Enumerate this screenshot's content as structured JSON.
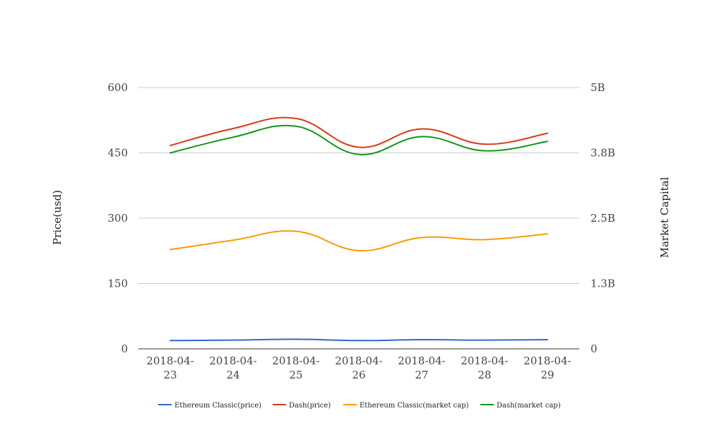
{
  "chart_data": {
    "type": "line",
    "categories": [
      "2018-04-23",
      "2018-04-24",
      "2018-04-25",
      "2018-04-26",
      "2018-04-27",
      "2018-04-28",
      "2018-04-29"
    ],
    "category_labels": [
      [
        "2018-04-",
        "23"
      ],
      [
        "2018-04-",
        "24"
      ],
      [
        "2018-04-",
        "25"
      ],
      [
        "2018-04-",
        "26"
      ],
      [
        "2018-04-",
        "27"
      ],
      [
        "2018-04-",
        "28"
      ],
      [
        "2018-04-",
        "29"
      ]
    ],
    "y_left": {
      "label": "Price(usd)",
      "range": [
        0,
        600
      ],
      "ticks": [
        "0",
        "150",
        "300",
        "450",
        "600"
      ]
    },
    "y_right": {
      "label": "Market Capital",
      "range": [
        0,
        5000000000
      ],
      "ticks": [
        "0",
        "1.3B",
        "2.5B",
        "3.8B",
        "5B"
      ]
    },
    "grid": true,
    "legend_position": "bottom",
    "series": [
      {
        "name": "Ethereum Classic(price)",
        "axis": "left",
        "color": "#3366cc",
        "values": [
          19,
          20,
          22,
          19,
          21,
          20,
          21
        ]
      },
      {
        "name": "Dash(price)",
        "axis": "left",
        "color": "#dc3912",
        "values": [
          467,
          506,
          529,
          463,
          505,
          470,
          495
        ]
      },
      {
        "name": "Ethereum Classic(market cap)",
        "axis": "right",
        "color": "#ff9900",
        "values": [
          1900000000,
          2080000000,
          2250000000,
          1880000000,
          2130000000,
          2090000000,
          2200000000
        ]
      },
      {
        "name": "Dash(market cap)",
        "axis": "right",
        "color": "#109618",
        "values": [
          3750000000,
          4050000000,
          4260000000,
          3720000000,
          4060000000,
          3790000000,
          3970000000
        ]
      }
    ]
  }
}
